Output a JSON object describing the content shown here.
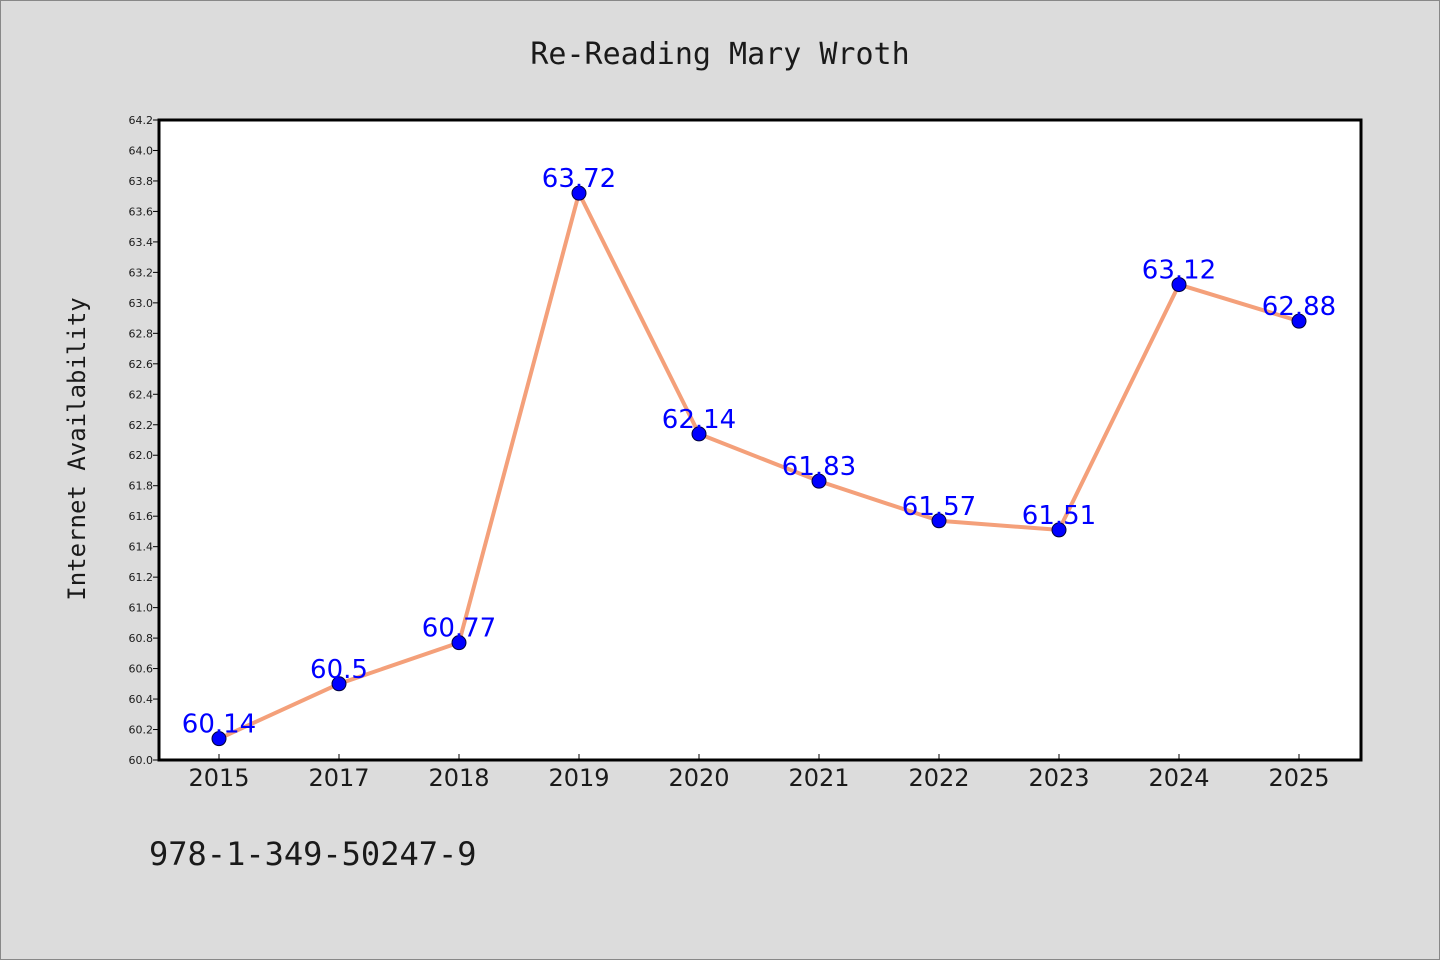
{
  "chart_data": {
    "type": "line",
    "title": "Re-Reading Mary Wroth",
    "xlabel": "",
    "ylabel": "Internet Availability",
    "categories": [
      "2015",
      "2017",
      "2018",
      "2019",
      "2020",
      "2021",
      "2022",
      "2023",
      "2024",
      "2025"
    ],
    "series": [
      {
        "values": [
          60.14,
          60.5,
          60.77,
          63.72,
          62.14,
          61.83,
          61.57,
          61.51,
          63.12,
          62.88
        ],
        "line_color": "#f4a07a",
        "marker_color": "#0000ff"
      }
    ],
    "data_labels": [
      "60.14",
      "60.5",
      "60.77",
      "63.72",
      "62.14",
      "61.83",
      "61.57",
      "61.51",
      "63.12",
      "62.88"
    ],
    "ylim": [
      60.0,
      64.2
    ],
    "yticks": [
      "60.0",
      "60.2",
      "60.4",
      "60.6",
      "60.8",
      "61.0",
      "61.2",
      "61.4",
      "61.6",
      "61.8",
      "62.0",
      "62.2",
      "62.4",
      "62.6",
      "62.8",
      "63.0",
      "63.2",
      "63.4",
      "63.6",
      "63.8",
      "64.0",
      "64.2"
    ],
    "grid": false,
    "legend": false
  },
  "footer": {
    "isbn": "978-1-349-50247-9"
  },
  "colors": {
    "background": "#dcdcdc",
    "plot_background": "#ffffff",
    "line": "#f4a07a",
    "marker": "#0000ff",
    "data_label": "#0000ff",
    "text": "#1a1a1a"
  }
}
